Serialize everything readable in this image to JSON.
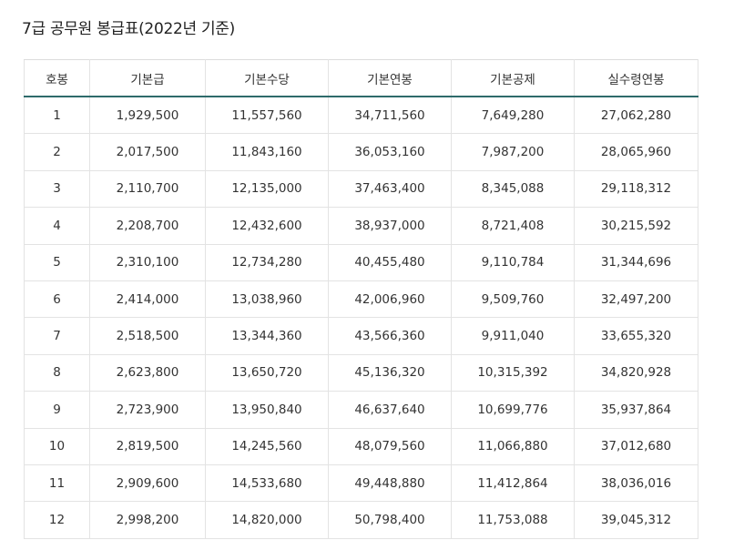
{
  "title": "7급 공무원 봉급표(2022년 기준)",
  "table": {
    "headers": [
      "호봉",
      "기본급",
      "기본수당",
      "기본연봉",
      "기본공제",
      "실수령연봉"
    ],
    "rows": [
      [
        "1",
        "1,929,500",
        "11,557,560",
        "34,711,560",
        "7,649,280",
        "27,062,280"
      ],
      [
        "2",
        "2,017,500",
        "11,843,160",
        "36,053,160",
        "7,987,200",
        "28,065,960"
      ],
      [
        "3",
        "2,110,700",
        "12,135,000",
        "37,463,400",
        "8,345,088",
        "29,118,312"
      ],
      [
        "4",
        "2,208,700",
        "12,432,600",
        "38,937,000",
        "8,721,408",
        "30,215,592"
      ],
      [
        "5",
        "2,310,100",
        "12,734,280",
        "40,455,480",
        "9,110,784",
        "31,344,696"
      ],
      [
        "6",
        "2,414,000",
        "13,038,960",
        "42,006,960",
        "9,509,760",
        "32,497,200"
      ],
      [
        "7",
        "2,518,500",
        "13,344,360",
        "43,566,360",
        "9,911,040",
        "33,655,320"
      ],
      [
        "8",
        "2,623,800",
        "13,650,720",
        "45,136,320",
        "10,315,392",
        "34,820,928"
      ],
      [
        "9",
        "2,723,900",
        "13,950,840",
        "46,637,640",
        "10,699,776",
        "35,937,864"
      ],
      [
        "10",
        "2,819,500",
        "14,245,560",
        "48,079,560",
        "11,066,880",
        "37,012,680"
      ],
      [
        "11",
        "2,909,600",
        "14,533,680",
        "49,448,880",
        "11,412,864",
        "38,036,016"
      ],
      [
        "12",
        "2,998,200",
        "14,820,000",
        "50,798,400",
        "11,753,088",
        "39,045,312"
      ]
    ]
  },
  "colors": {
    "header_underline": "#2e6b6b",
    "grid_line": "#e3e3e3",
    "text": "#333333"
  }
}
